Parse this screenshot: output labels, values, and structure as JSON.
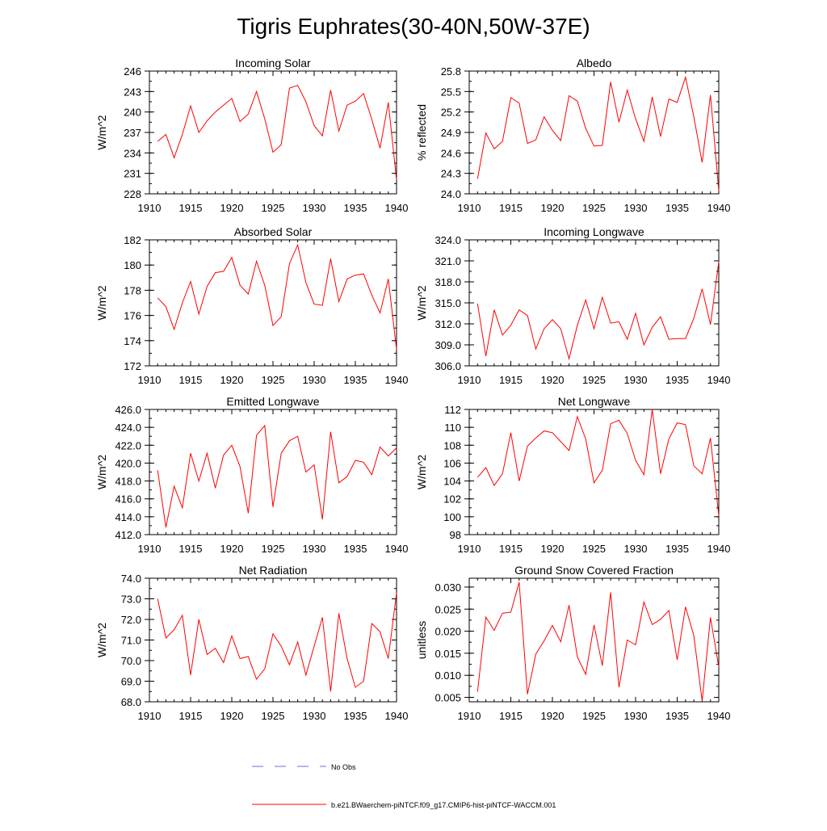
{
  "title": "Tigris Euphrates(30-40N,50W-37E)",
  "legend": {
    "obs_label": "No Obs",
    "model_label": "b.e21.BWaerchem-piNTCF.f09_g17.CMIP6-hist-piNTCF-WACCM.001",
    "obs_color": "#6b6bd6",
    "model_color": "#ff0000"
  },
  "chart_data": [
    {
      "type": "line",
      "title": "Incoming Solar",
      "xlabel": "",
      "ylabel": "W/m^2",
      "xlim": [
        1910,
        1940
      ],
      "ylim": [
        228,
        246
      ],
      "xticks": [
        "1910",
        "1915",
        "1920",
        "1925",
        "1930",
        "1935",
        "1940"
      ],
      "yticks": [
        "228",
        "231",
        "234",
        "237",
        "240",
        "243",
        "246"
      ],
      "x": [
        1911,
        1912,
        1913,
        1914,
        1915,
        1916,
        1917,
        1918,
        1919,
        1920,
        1921,
        1922,
        1923,
        1924,
        1925,
        1926,
        1927,
        1928,
        1929,
        1930,
        1931,
        1932,
        1933,
        1934,
        1935,
        1936,
        1937,
        1938,
        1939,
        1940
      ],
      "series": [
        {
          "values": [
            235.7,
            236.7,
            233.3,
            236.7,
            240.9,
            237.0,
            238.7,
            240.0,
            241.0,
            242.0,
            238.6,
            239.7,
            243.0,
            239.0,
            234.1,
            235.2,
            243.5,
            243.9,
            241.5,
            238.0,
            236.5,
            243.2,
            237.2,
            241.0,
            241.6,
            242.7,
            238.9,
            234.7,
            241.4,
            230.0
          ]
        }
      ]
    },
    {
      "type": "line",
      "title": "Albedo",
      "xlabel": "",
      "ylabel": "% reflected",
      "xlim": [
        1910,
        1940
      ],
      "ylim": [
        24.0,
        25.8
      ],
      "xticks": [
        "1910",
        "1915",
        "1920",
        "1925",
        "1930",
        "1935",
        "1940"
      ],
      "yticks": [
        "24.0",
        "24.3",
        "24.6",
        "24.9",
        "25.2",
        "25.5",
        "25.8"
      ],
      "x": [
        1911,
        1912,
        1913,
        1914,
        1915,
        1916,
        1917,
        1918,
        1919,
        1920,
        1921,
        1922,
        1923,
        1924,
        1925,
        1926,
        1927,
        1928,
        1929,
        1930,
        1931,
        1932,
        1933,
        1934,
        1935,
        1936,
        1937,
        1938,
        1939,
        1940
      ],
      "series": [
        {
          "values": [
            24.22,
            24.89,
            24.66,
            24.77,
            25.41,
            25.33,
            24.74,
            24.79,
            25.13,
            24.93,
            24.78,
            25.44,
            25.36,
            24.96,
            24.7,
            24.71,
            25.64,
            25.05,
            25.52,
            25.1,
            24.77,
            25.42,
            24.84,
            25.39,
            25.34,
            25.71,
            25.13,
            24.46,
            25.45,
            24.04
          ]
        }
      ]
    },
    {
      "type": "line",
      "title": "Absorbed Solar",
      "xlabel": "",
      "ylabel": "W/m^2",
      "xlim": [
        1910,
        1940
      ],
      "ylim": [
        172,
        182
      ],
      "xticks": [
        "1910",
        "1915",
        "1920",
        "1925",
        "1930",
        "1935",
        "1940"
      ],
      "yticks": [
        "172",
        "174",
        "176",
        "178",
        "180",
        "182"
      ],
      "x": [
        1911,
        1912,
        1913,
        1914,
        1915,
        1916,
        1917,
        1918,
        1919,
        1920,
        1921,
        1922,
        1923,
        1924,
        1925,
        1926,
        1927,
        1928,
        1929,
        1930,
        1931,
        1932,
        1933,
        1934,
        1935,
        1936,
        1937,
        1938,
        1939,
        1940
      ],
      "series": [
        {
          "values": [
            177.4,
            176.7,
            174.9,
            177.0,
            178.7,
            176.1,
            178.3,
            179.4,
            179.5,
            180.6,
            178.4,
            177.7,
            180.3,
            178.4,
            175.2,
            175.9,
            180.1,
            181.6,
            178.6,
            176.9,
            176.8,
            180.5,
            177.1,
            178.9,
            179.2,
            179.3,
            177.6,
            176.2,
            178.9,
            173.3
          ]
        }
      ]
    },
    {
      "type": "line",
      "title": "Incoming Longwave",
      "xlabel": "",
      "ylabel": "W/m^2",
      "xlim": [
        1910,
        1940
      ],
      "ylim": [
        306.0,
        324.0
      ],
      "xticks": [
        "1910",
        "1915",
        "1920",
        "1925",
        "1930",
        "1935",
        "1940"
      ],
      "yticks": [
        "306.0",
        "309.0",
        "312.0",
        "315.0",
        "318.0",
        "321.0",
        "324.0"
      ],
      "x": [
        1911,
        1912,
        1913,
        1914,
        1915,
        1916,
        1917,
        1918,
        1919,
        1920,
        1921,
        1922,
        1923,
        1924,
        1925,
        1926,
        1927,
        1928,
        1929,
        1930,
        1931,
        1932,
        1933,
        1934,
        1935,
        1936,
        1937,
        1938,
        1939,
        1940
      ],
      "series": [
        {
          "values": [
            314.9,
            307.4,
            314.0,
            310.4,
            311.8,
            314.0,
            313.2,
            308.4,
            311.3,
            312.6,
            311.3,
            307.0,
            311.8,
            315.4,
            311.3,
            315.8,
            312.1,
            312.3,
            309.8,
            313.5,
            309.0,
            311.5,
            313.0,
            309.8,
            309.9,
            309.9,
            312.8,
            317.0,
            311.9,
            320.9
          ]
        }
      ]
    },
    {
      "type": "line",
      "title": "Emitted Longwave",
      "xlabel": "",
      "ylabel": "W/m^2",
      "xlim": [
        1910,
        1940
      ],
      "ylim": [
        412.0,
        426.0
      ],
      "xticks": [
        "1910",
        "1915",
        "1920",
        "1925",
        "1930",
        "1935",
        "1940"
      ],
      "yticks": [
        "412.0",
        "414.0",
        "416.0",
        "418.0",
        "420.0",
        "422.0",
        "424.0",
        "426.0"
      ],
      "x": [
        1911,
        1912,
        1913,
        1914,
        1915,
        1916,
        1917,
        1918,
        1919,
        1920,
        1921,
        1922,
        1923,
        1924,
        1925,
        1926,
        1927,
        1928,
        1929,
        1930,
        1931,
        1932,
        1933,
        1934,
        1935,
        1936,
        1937,
        1938,
        1939,
        1940
      ],
      "series": [
        {
          "values": [
            419.2,
            412.8,
            417.4,
            415.0,
            421.1,
            418.0,
            421.1,
            417.2,
            420.9,
            422.0,
            419.6,
            414.4,
            423.1,
            424.2,
            415.1,
            421.1,
            422.5,
            423.0,
            419.0,
            419.8,
            413.7,
            423.5,
            417.8,
            418.5,
            420.3,
            420.1,
            418.7,
            421.8,
            420.8,
            421.7
          ]
        }
      ]
    },
    {
      "type": "line",
      "title": "Net Longwave",
      "xlabel": "",
      "ylabel": "W/m^2",
      "xlim": [
        1910,
        1940
      ],
      "ylim": [
        98,
        112
      ],
      "xticks": [
        "1910",
        "1915",
        "1920",
        "1925",
        "1930",
        "1935",
        "1940"
      ],
      "yticks": [
        "98",
        "100",
        "102",
        "104",
        "106",
        "108",
        "110",
        "112"
      ],
      "x": [
        1911,
        1912,
        1913,
        1914,
        1915,
        1916,
        1917,
        1918,
        1919,
        1920,
        1921,
        1922,
        1923,
        1924,
        1925,
        1926,
        1927,
        1928,
        1929,
        1930,
        1931,
        1932,
        1933,
        1934,
        1935,
        1936,
        1937,
        1938,
        1939,
        1940
      ],
      "series": [
        {
          "values": [
            104.4,
            105.5,
            103.5,
            104.8,
            109.4,
            104.0,
            107.9,
            108.8,
            109.6,
            109.4,
            108.4,
            107.4,
            111.2,
            108.7,
            103.8,
            105.2,
            110.4,
            110.8,
            109.3,
            106.3,
            104.7,
            112.0,
            104.8,
            108.7,
            110.5,
            110.3,
            105.7,
            104.8,
            108.8,
            100.1
          ]
        }
      ]
    },
    {
      "type": "line",
      "title": "Net Radiation",
      "xlabel": "",
      "ylabel": "W/m^2",
      "xlim": [
        1910,
        1940
      ],
      "ylim": [
        68.0,
        74.0
      ],
      "xticks": [
        "1910",
        "1915",
        "1920",
        "1925",
        "1930",
        "1935",
        "1940"
      ],
      "yticks": [
        "68.0",
        "69.0",
        "70.0",
        "71.0",
        "72.0",
        "73.0",
        "74.0"
      ],
      "x": [
        1911,
        1912,
        1913,
        1914,
        1915,
        1916,
        1917,
        1918,
        1919,
        1920,
        1921,
        1922,
        1923,
        1924,
        1925,
        1926,
        1927,
        1928,
        1929,
        1930,
        1931,
        1932,
        1933,
        1934,
        1935,
        1936,
        1937,
        1938,
        1939,
        1940
      ],
      "series": [
        {
          "values": [
            73.0,
            71.1,
            71.5,
            72.2,
            69.3,
            72.0,
            70.3,
            70.6,
            69.9,
            71.2,
            70.1,
            70.2,
            69.1,
            69.6,
            71.3,
            70.7,
            69.8,
            70.9,
            69.3,
            70.7,
            72.1,
            68.5,
            72.3,
            70.1,
            68.7,
            69.0,
            71.8,
            71.4,
            70.1,
            73.3
          ]
        }
      ]
    },
    {
      "type": "line",
      "title": "Ground Snow Covered Fraction",
      "xlabel": "",
      "ylabel": "unitless",
      "xlim": [
        1910,
        1940
      ],
      "ylim": [
        0.004,
        0.032
      ],
      "xticks": [
        "1910",
        "1915",
        "1920",
        "1925",
        "1930",
        "1935",
        "1940"
      ],
      "yticks": [
        "0.005",
        "0.010",
        "0.015",
        "0.020",
        "0.025",
        "0.030"
      ],
      "x": [
        1911,
        1912,
        1913,
        1914,
        1915,
        1916,
        1917,
        1918,
        1919,
        1920,
        1921,
        1922,
        1923,
        1924,
        1925,
        1926,
        1927,
        1928,
        1929,
        1930,
        1931,
        1932,
        1933,
        1934,
        1935,
        1936,
        1937,
        1938,
        1939,
        1940
      ],
      "series": [
        {
          "values": [
            0.0063,
            0.0232,
            0.0202,
            0.0241,
            0.0243,
            0.0311,
            0.0057,
            0.0148,
            0.0178,
            0.0213,
            0.0176,
            0.0259,
            0.0142,
            0.0102,
            0.0214,
            0.0122,
            0.0288,
            0.0073,
            0.018,
            0.0169,
            0.0266,
            0.0215,
            0.0227,
            0.0247,
            0.0135,
            0.0255,
            0.019,
            0.0042,
            0.0231,
            0.0119
          ]
        }
      ]
    }
  ]
}
